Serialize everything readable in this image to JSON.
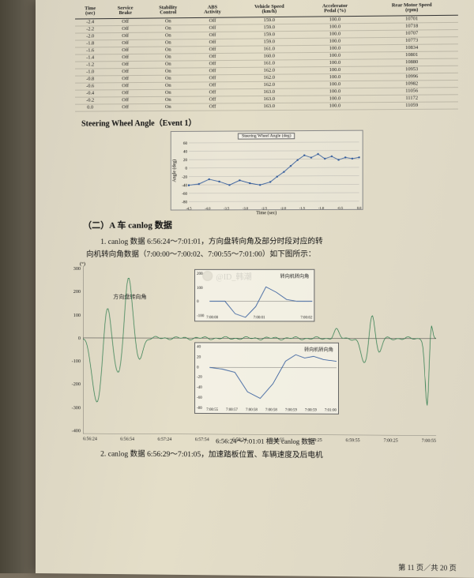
{
  "table": {
    "headers": [
      "Time\n(sec)",
      "Service\nBrake",
      "Stability\nControl",
      "ABS\nActivity",
      "Vehicle Speed\n(km/h)",
      "Accelerator\nPedal (%)",
      "Rear Motor Speed\n(rpm)"
    ],
    "rows": [
      [
        "-2.4",
        "Off",
        "On",
        "Off",
        "159.0",
        "100.0",
        "10701"
      ],
      [
        "-2.2",
        "Off",
        "On",
        "Off",
        "159.0",
        "100.0",
        "10718"
      ],
      [
        "-2.0",
        "Off",
        "On",
        "Off",
        "159.0",
        "100.0",
        "10707"
      ],
      [
        "-1.8",
        "Off",
        "On",
        "Off",
        "159.0",
        "100.0",
        "10773"
      ],
      [
        "-1.6",
        "Off",
        "On",
        "Off",
        "161.0",
        "100.0",
        "10834"
      ],
      [
        "-1.4",
        "Off",
        "On",
        "Off",
        "160.0",
        "100.0",
        "10801"
      ],
      [
        "-1.2",
        "Off",
        "On",
        "Off",
        "161.0",
        "100.0",
        "10880"
      ],
      [
        "-1.0",
        "Off",
        "On",
        "Off",
        "162.0",
        "100.0",
        "10953"
      ],
      [
        "-0.8",
        "Off",
        "On",
        "Off",
        "162.0",
        "100.0",
        "10996"
      ],
      [
        "-0.6",
        "Off",
        "On",
        "Off",
        "162.0",
        "100.0",
        "10982"
      ],
      [
        "-0.4",
        "Off",
        "On",
        "Off",
        "163.0",
        "100.0",
        "11056"
      ],
      [
        "-0.2",
        "Off",
        "On",
        "Off",
        "163.0",
        "100.0",
        "11172"
      ],
      [
        "0.0",
        "Off",
        "On",
        "Off",
        "163.0",
        "100.0",
        "11059"
      ]
    ]
  },
  "chart1": {
    "title_label": "Steering Wheel Angle（Event 1）",
    "box_title": "Steering Wheel Angle (deg)",
    "ylabel": "Angle (deg)",
    "xlabel": "Time (sec)",
    "yticks": [
      "60",
      "40",
      "20",
      "0",
      "-20",
      "-40",
      "-60",
      "-80"
    ],
    "xticks": [
      "-4.5",
      "-4.0",
      "-3.5",
      "-3.0",
      "-2.5",
      "-2.0",
      "-1.5",
      "-1.0",
      "-0.5",
      "0.0"
    ],
    "line_color": "#2a5599",
    "marker_color": "#2a5599",
    "background": "transparent",
    "grid_color": "#999",
    "points": [
      [
        0,
        0.72
      ],
      [
        0.06,
        0.7
      ],
      [
        0.12,
        0.62
      ],
      [
        0.18,
        0.66
      ],
      [
        0.24,
        0.72
      ],
      [
        0.3,
        0.64
      ],
      [
        0.36,
        0.69
      ],
      [
        0.42,
        0.72
      ],
      [
        0.48,
        0.67
      ],
      [
        0.52,
        0.58
      ],
      [
        0.56,
        0.5
      ],
      [
        0.6,
        0.4
      ],
      [
        0.64,
        0.3
      ],
      [
        0.68,
        0.22
      ],
      [
        0.72,
        0.26
      ],
      [
        0.76,
        0.2
      ],
      [
        0.8,
        0.28
      ],
      [
        0.84,
        0.24
      ],
      [
        0.88,
        0.3
      ],
      [
        0.92,
        0.26
      ],
      [
        0.96,
        0.28
      ],
      [
        1.0,
        0.26
      ]
    ]
  },
  "section2": {
    "heading": "（二）A 车 canlog 数据",
    "para1_a": "1. canlog 数据 6:56:24～7:01:01，方向盘转向角及部分时段对应的转",
    "para1_b": "向机转向角数据（7:00:00～7:00:02、7:00:55～7:01:00）如下图所示：",
    "caption": "6:56:24～7:01:01 相关 canlog 数据",
    "para2": "2. canlog 数据 6:56:29～7:01:05，加速踏板位置、车辆速度及后电机"
  },
  "big_chart": {
    "main_label": "方向盘转向角",
    "yticks": [
      "300",
      "200",
      "100",
      "0",
      "-100",
      "-200",
      "-300",
      "-400"
    ],
    "xticks": [
      "6:56:24",
      "6:56:54",
      "6:57:24",
      "6:57:54",
      "6:58:24",
      "6:58:55",
      "6:59:25",
      "6:59:55",
      "7:00:25",
      "7:00:55"
    ],
    "ylabel_unit": "(°)",
    "line1_color": "#2a7a4a",
    "line2_color": "#2a5599",
    "inset1": {
      "label": "转向机转向角",
      "yticks": [
        "200",
        "100",
        "0",
        "-100"
      ],
      "xticks": [
        "7:00:00",
        "7:00:01",
        "7:00:02"
      ],
      "line_color": "#2a5599"
    },
    "inset2": {
      "label": "转向机转向角",
      "yticks": [
        "40",
        "20",
        "0",
        "-20",
        "-40",
        "-60",
        "-80"
      ],
      "xticks": [
        "7:00:55",
        "7:00:57",
        "7:00:58",
        "7:00:58",
        "7:00:59",
        "7:00:59",
        "7:01:00"
      ],
      "line_color": "#2a5599"
    }
  },
  "watermark": {
    "text": "@ID_韩潮"
  },
  "page_footer": "第 11 页／共 20 页"
}
